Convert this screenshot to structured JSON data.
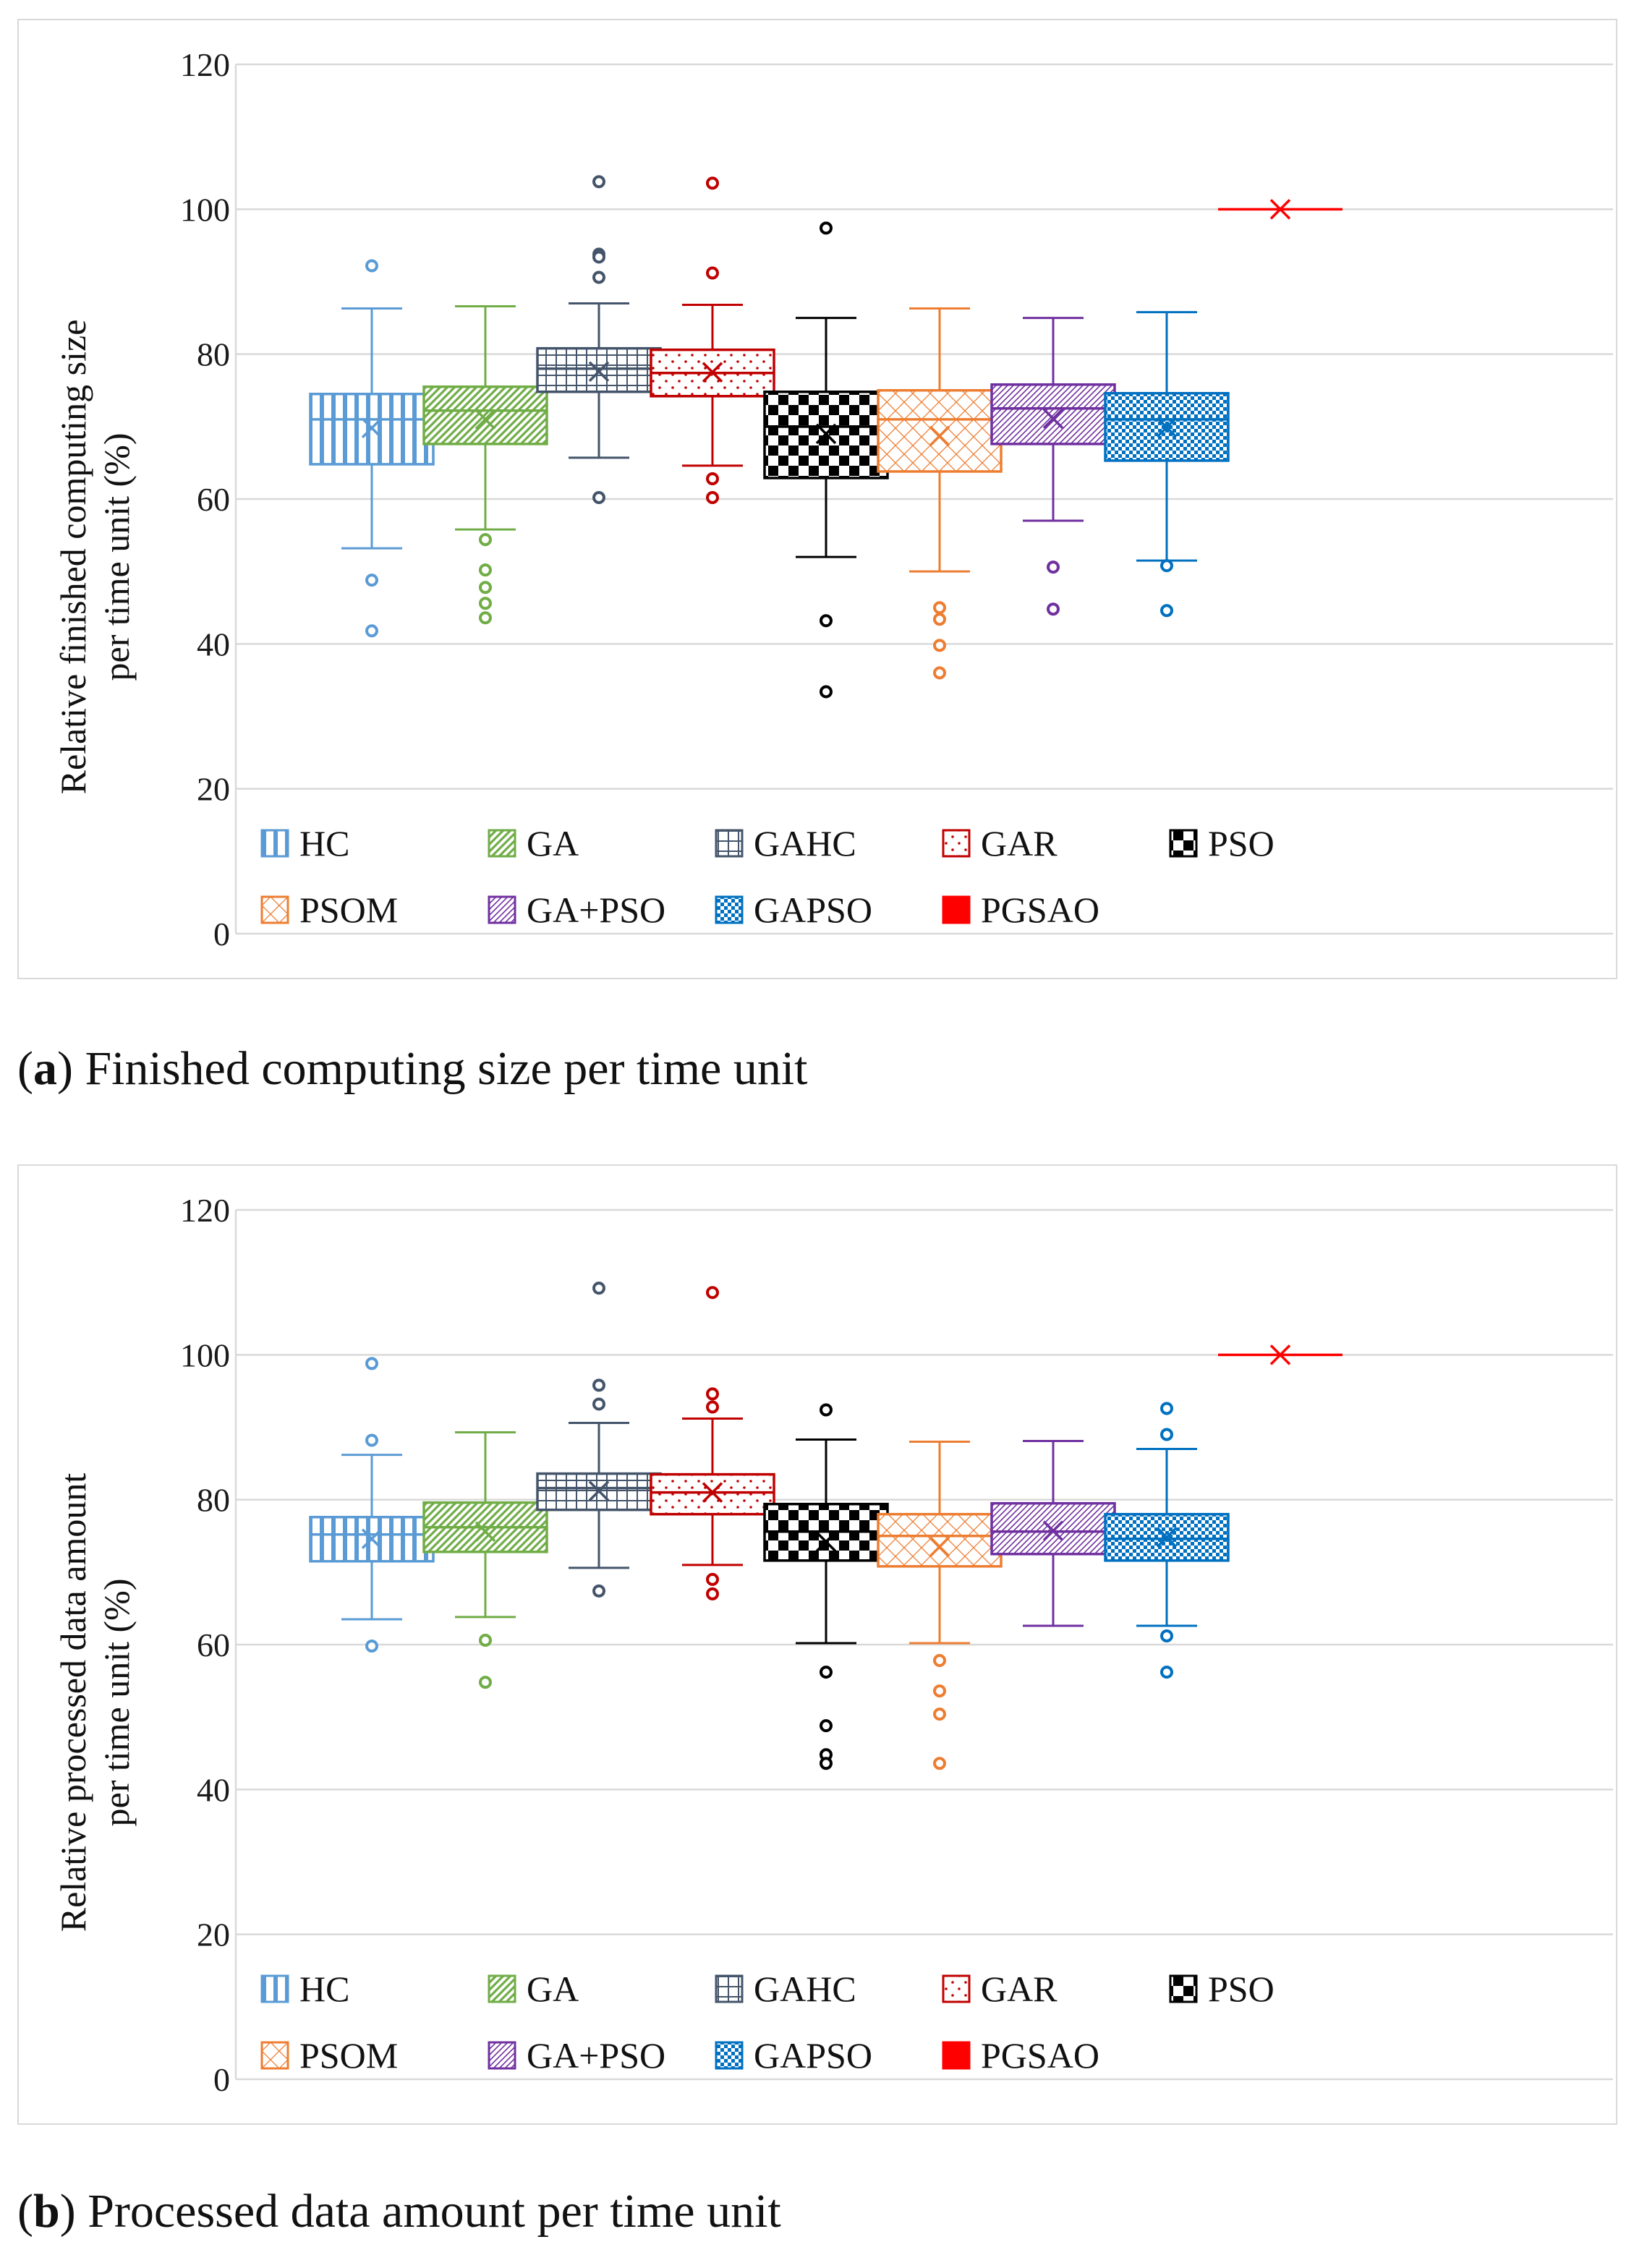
{
  "chart_data": [
    {
      "type": "box",
      "panel_label": "a",
      "caption": "Finished computing size per time unit",
      "ylabel_line1": "Relative finished computing size",
      "ylabel_line2": "per time unit  (%)",
      "ylim": [
        0,
        120
      ],
      "yticks": [
        "0",
        "20",
        "40",
        "60",
        "80",
        "100",
        "120"
      ],
      "grid": true,
      "legend_position": "bottom-inside",
      "series": [
        {
          "name": "HC",
          "color": "#5b9bd5",
          "pattern": "vlines",
          "min": 53.2,
          "q1": 64.8,
          "median": 71.0,
          "q3": 74.5,
          "max": 86.3,
          "mean": 69.8,
          "outliers": [
            92.2,
            48.8,
            41.8
          ]
        },
        {
          "name": "GA",
          "color": "#70ad47",
          "pattern": "diag",
          "min": 55.8,
          "q1": 67.6,
          "median": 72.2,
          "q3": 75.5,
          "max": 86.6,
          "mean": 71.0,
          "outliers": [
            54.4,
            50.2,
            47.8,
            45.6,
            43.6
          ]
        },
        {
          "name": "GAHC",
          "color": "#44546a",
          "pattern": "grid",
          "min": 65.7,
          "q1": 74.8,
          "median": 78.0,
          "q3": 80.8,
          "max": 87.0,
          "mean": 77.6,
          "outliers": [
            103.8,
            93.8,
            93.4,
            90.6,
            60.2
          ]
        },
        {
          "name": "GAR",
          "color": "#c00000",
          "pattern": "dots",
          "min": 64.6,
          "q1": 74.2,
          "median": 77.4,
          "q3": 80.6,
          "max": 86.8,
          "mean": 77.5,
          "outliers": [
            103.6,
            91.2,
            62.8,
            60.2
          ]
        },
        {
          "name": "PSO",
          "color": "#000000",
          "pattern": "checker",
          "min": 52.0,
          "q1": 62.9,
          "median": 70.0,
          "q3": 74.8,
          "max": 85.0,
          "mean": 69.0,
          "outliers": [
            97.4,
            43.2,
            33.4
          ]
        },
        {
          "name": "PSOM",
          "color": "#ed7d31",
          "pattern": "cross",
          "min": 50.0,
          "q1": 63.8,
          "median": 71.0,
          "q3": 75.0,
          "max": 86.3,
          "mean": 68.7,
          "outliers": [
            45.0,
            43.4,
            39.8,
            36.0
          ]
        },
        {
          "name": "GA+PSO",
          "color": "#7030a0",
          "pattern": "fdiag",
          "min": 57.0,
          "q1": 67.6,
          "median": 72.5,
          "q3": 75.8,
          "max": 85.0,
          "mean": 71.1,
          "outliers": [
            50.6,
            44.8
          ]
        },
        {
          "name": "GAPSO",
          "color": "#0070c0",
          "pattern": "smallcheck",
          "min": 51.5,
          "q1": 65.3,
          "median": 71.0,
          "q3": 74.6,
          "max": 85.8,
          "mean": 69.9,
          "outliers": [
            50.8,
            44.6
          ]
        },
        {
          "name": "PGSAO",
          "color": "#ff0000",
          "pattern": "solid",
          "min": 100,
          "q1": 100,
          "median": 100,
          "q3": 100,
          "max": 100,
          "mean": 100,
          "outliers": []
        }
      ]
    },
    {
      "type": "box",
      "panel_label": "b",
      "caption": "Processed data amount per time unit",
      "ylabel_line1": "Relative processed data amount",
      "ylabel_line2": "per time unit  (%)",
      "ylim": [
        0,
        120
      ],
      "yticks": [
        "0",
        "20",
        "40",
        "60",
        "80",
        "100",
        "120"
      ],
      "grid": true,
      "legend_position": "bottom-inside",
      "series": [
        {
          "name": "HC",
          "color": "#5b9bd5",
          "pattern": "vlines",
          "min": 63.5,
          "q1": 71.5,
          "median": 75.2,
          "q3": 77.6,
          "max": 86.2,
          "mean": 74.6,
          "outliers": [
            98.8,
            88.2,
            59.8
          ]
        },
        {
          "name": "GA",
          "color": "#70ad47",
          "pattern": "diag",
          "min": 63.8,
          "q1": 72.8,
          "median": 76.2,
          "q3": 79.6,
          "max": 89.3,
          "mean": 75.6,
          "outliers": [
            60.6,
            54.8
          ]
        },
        {
          "name": "GAHC",
          "color": "#44546a",
          "pattern": "grid",
          "min": 70.6,
          "q1": 78.6,
          "median": 81.6,
          "q3": 83.6,
          "max": 90.6,
          "mean": 81.2,
          "outliers": [
            109.2,
            95.8,
            93.2,
            67.4
          ]
        },
        {
          "name": "GAR",
          "color": "#c00000",
          "pattern": "dots",
          "min": 71.0,
          "q1": 78.0,
          "median": 81.0,
          "q3": 83.5,
          "max": 91.2,
          "mean": 81.0,
          "outliers": [
            108.6,
            94.6,
            92.8,
            69.0,
            67.0
          ]
        },
        {
          "name": "PSO",
          "color": "#000000",
          "pattern": "checker",
          "min": 60.2,
          "q1": 71.6,
          "median": 75.6,
          "q3": 79.4,
          "max": 88.3,
          "mean": 74.2,
          "outliers": [
            92.4,
            56.2,
            48.8,
            44.8,
            43.6
          ]
        },
        {
          "name": "PSOM",
          "color": "#ed7d31",
          "pattern": "cross",
          "min": 60.2,
          "q1": 70.8,
          "median": 75.0,
          "q3": 78.0,
          "max": 88.0,
          "mean": 73.5,
          "outliers": [
            57.8,
            53.6,
            50.4,
            43.6
          ]
        },
        {
          "name": "GA+PSO",
          "color": "#7030a0",
          "pattern": "fdiag",
          "min": 62.6,
          "q1": 72.5,
          "median": 75.6,
          "q3": 79.5,
          "max": 88.1,
          "mean": 75.7,
          "outliers": []
        },
        {
          "name": "GAPSO",
          "color": "#0070c0",
          "pattern": "smallcheck",
          "min": 62.6,
          "q1": 71.6,
          "median": 74.6,
          "q3": 78.0,
          "max": 87.0,
          "mean": 74.8,
          "outliers": [
            92.6,
            89.0,
            61.2,
            56.2
          ]
        },
        {
          "name": "PGSAO",
          "color": "#ff0000",
          "pattern": "solid",
          "min": 100,
          "q1": 100,
          "median": 100,
          "q3": 100,
          "max": 100,
          "mean": 100,
          "outliers": []
        }
      ]
    }
  ]
}
